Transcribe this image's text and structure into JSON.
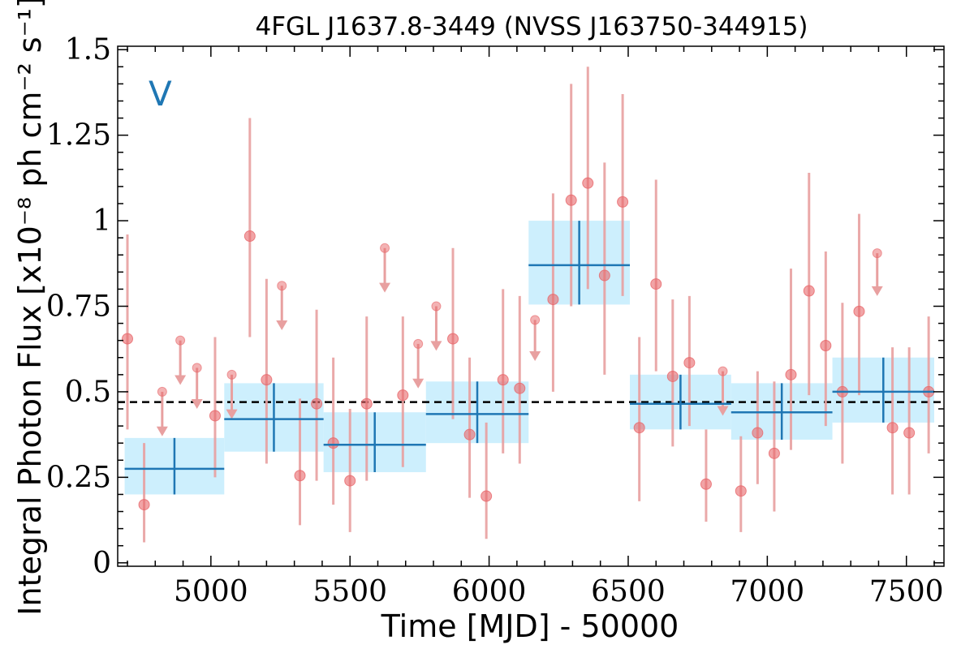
{
  "chart_data": {
    "type": "scatter",
    "title": "4FGL J1637.8-3449 (NVSS J163750-344915)",
    "xlabel": "Time [MJD] - 50000",
    "ylabel": "Integral Photon Flux [x10⁻⁸ ph cm⁻² s⁻¹]",
    "panel_label": "V",
    "xlim": [
      4665,
      7635
    ],
    "ylim": [
      -0.01,
      1.51
    ],
    "x_ticks": [
      5000,
      5500,
      6000,
      6500,
      7000,
      7500
    ],
    "x_tick_labels": [
      "5000",
      "5500",
      "6000",
      "6500",
      "7000",
      "7500"
    ],
    "y_ticks": [
      0,
      0.25,
      0.5,
      0.75,
      1,
      1.25,
      1.5
    ],
    "y_tick_labels": [
      "0",
      "0.25",
      "0.5",
      "0.75",
      "1",
      "1.25",
      "1.5"
    ],
    "mean_flux": 0.47,
    "colors": {
      "points": "#e8676a",
      "errorbars": "#e8a0a0",
      "bins": "#1f77b4",
      "bin_band": "#cdeffd",
      "mean_line": "#000000"
    },
    "detections": [
      {
        "x": 4700,
        "y": 0.655,
        "ylo": 0.39,
        "yhi": 0.96
      },
      {
        "x": 4760,
        "y": 0.17,
        "ylo": 0.06,
        "yhi": 0.35
      },
      {
        "x": 5015,
        "y": 0.43,
        "ylo": 0.25,
        "yhi": 0.66
      },
      {
        "x": 5140,
        "y": 0.955,
        "ylo": 0.66,
        "yhi": 1.3
      },
      {
        "x": 5200,
        "y": 0.535,
        "ylo": 0.29,
        "yhi": 0.83
      },
      {
        "x": 5320,
        "y": 0.255,
        "ylo": 0.11,
        "yhi": 0.48
      },
      {
        "x": 5380,
        "y": 0.465,
        "ylo": 0.24,
        "yhi": 0.74
      },
      {
        "x": 5440,
        "y": 0.35,
        "ylo": 0.17,
        "yhi": 0.6
      },
      {
        "x": 5500,
        "y": 0.24,
        "ylo": 0.09,
        "yhi": 0.45
      },
      {
        "x": 5560,
        "y": 0.465,
        "ylo": 0.24,
        "yhi": 0.72
      },
      {
        "x": 5690,
        "y": 0.49,
        "ylo": 0.28,
        "yhi": 0.72
      },
      {
        "x": 5870,
        "y": 0.655,
        "ylo": 0.42,
        "yhi": 0.92
      },
      {
        "x": 5930,
        "y": 0.375,
        "ylo": 0.19,
        "yhi": 0.6
      },
      {
        "x": 5990,
        "y": 0.195,
        "ylo": 0.07,
        "yhi": 0.41
      },
      {
        "x": 6050,
        "y": 0.535,
        "ylo": 0.32,
        "yhi": 0.8
      },
      {
        "x": 6110,
        "y": 0.51,
        "ylo": 0.29,
        "yhi": 0.78
      },
      {
        "x": 6230,
        "y": 0.77,
        "ylo": 0.5,
        "yhi": 1.08
      },
      {
        "x": 6295,
        "y": 1.06,
        "ylo": 0.75,
        "yhi": 1.4
      },
      {
        "x": 6355,
        "y": 1.11,
        "ylo": 0.8,
        "yhi": 1.45
      },
      {
        "x": 6415,
        "y": 0.84,
        "ylo": 0.55,
        "yhi": 1.17
      },
      {
        "x": 6480,
        "y": 1.055,
        "ylo": 0.78,
        "yhi": 1.37
      },
      {
        "x": 6540,
        "y": 0.395,
        "ylo": 0.18,
        "yhi": 0.66
      },
      {
        "x": 6600,
        "y": 0.815,
        "ylo": 0.56,
        "yhi": 1.12
      },
      {
        "x": 6660,
        "y": 0.545,
        "ylo": 0.34,
        "yhi": 0.77
      },
      {
        "x": 6720,
        "y": 0.585,
        "ylo": 0.4,
        "yhi": 0.78
      },
      {
        "x": 6780,
        "y": 0.23,
        "ylo": 0.12,
        "yhi": 0.39
      },
      {
        "x": 6905,
        "y": 0.21,
        "ylo": 0.09,
        "yhi": 0.37
      },
      {
        "x": 6965,
        "y": 0.38,
        "ylo": 0.23,
        "yhi": 0.56
      },
      {
        "x": 7025,
        "y": 0.32,
        "ylo": 0.15,
        "yhi": 0.53
      },
      {
        "x": 7085,
        "y": 0.55,
        "ylo": 0.33,
        "yhi": 0.86
      },
      {
        "x": 7150,
        "y": 0.795,
        "ylo": 0.49,
        "yhi": 1.14
      },
      {
        "x": 7210,
        "y": 0.635,
        "ylo": 0.4,
        "yhi": 0.91
      },
      {
        "x": 7270,
        "y": 0.5,
        "ylo": 0.29,
        "yhi": 0.76
      },
      {
        "x": 7330,
        "y": 0.735,
        "ylo": 0.49,
        "yhi": 1.02
      },
      {
        "x": 7450,
        "y": 0.395,
        "ylo": 0.2,
        "yhi": 0.63
      },
      {
        "x": 7510,
        "y": 0.38,
        "ylo": 0.2,
        "yhi": 0.63
      },
      {
        "x": 7580,
        "y": 0.5,
        "ylo": 0.32,
        "yhi": 0.72
      }
    ],
    "upper_limits": [
      {
        "x": 4825,
        "y": 0.5,
        "arrow_to": 0.37
      },
      {
        "x": 4890,
        "y": 0.65,
        "arrow_to": 0.52
      },
      {
        "x": 4950,
        "y": 0.57,
        "arrow_to": 0.45
      },
      {
        "x": 5075,
        "y": 0.55,
        "arrow_to": 0.42
      },
      {
        "x": 5255,
        "y": 0.81,
        "arrow_to": 0.68
      },
      {
        "x": 5625,
        "y": 0.92,
        "arrow_to": 0.79
      },
      {
        "x": 5745,
        "y": 0.64,
        "arrow_to": 0.51
      },
      {
        "x": 5810,
        "y": 0.75,
        "arrow_to": 0.62
      },
      {
        "x": 6165,
        "y": 0.71,
        "arrow_to": 0.59
      },
      {
        "x": 6840,
        "y": 0.56,
        "arrow_to": 0.43
      },
      {
        "x": 7395,
        "y": 0.905,
        "arrow_to": 0.78
      }
    ],
    "bins": [
      {
        "x0": 4690,
        "x1": 5048,
        "y": 0.275,
        "ylo": 0.2,
        "yhi": 0.365
      },
      {
        "x0": 5048,
        "x1": 5405,
        "y": 0.42,
        "ylo": 0.325,
        "yhi": 0.525
      },
      {
        "x0": 5405,
        "x1": 5773,
        "y": 0.345,
        "ylo": 0.265,
        "yhi": 0.44
      },
      {
        "x0": 5773,
        "x1": 6142,
        "y": 0.435,
        "ylo": 0.35,
        "yhi": 0.53
      },
      {
        "x0": 6142,
        "x1": 6506,
        "y": 0.87,
        "ylo": 0.755,
        "yhi": 1.0
      },
      {
        "x0": 6506,
        "x1": 6870,
        "y": 0.465,
        "ylo": 0.39,
        "yhi": 0.55
      },
      {
        "x0": 6870,
        "x1": 7234,
        "y": 0.44,
        "ylo": 0.36,
        "yhi": 0.525
      },
      {
        "x0": 7234,
        "x1": 7600,
        "y": 0.5,
        "ylo": 0.41,
        "yhi": 0.6
      }
    ]
  }
}
